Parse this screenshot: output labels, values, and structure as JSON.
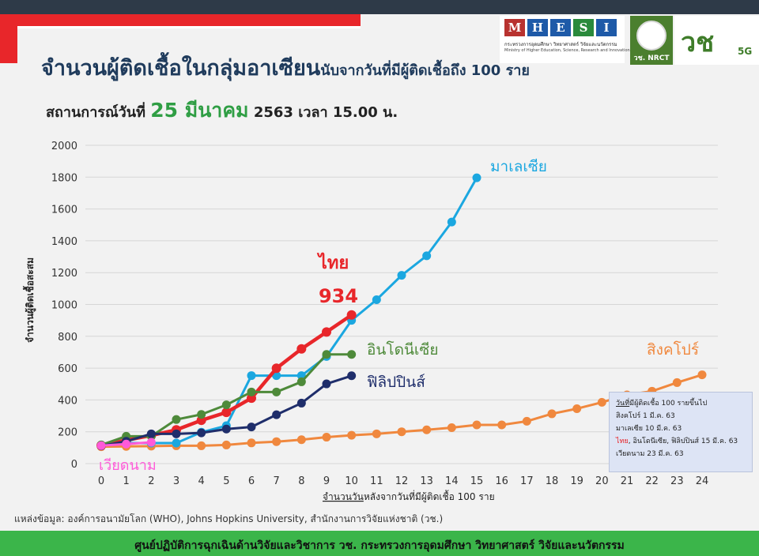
{
  "header": {
    "title_main": "จำนวนผู้ติดเชื้อในกลุ่มอาเซียน",
    "title_suffix": "นับจากวันที่มีผู้ติดเชื้อถึง 100 ราย",
    "status_prefix": "สถานการณ์วันที่",
    "status_date": "25 มีนาคม",
    "status_suffix": "2563 เวลา 15.00 น."
  },
  "logos": {
    "mhesi_letters": [
      "M",
      "H",
      "E",
      "S",
      "I"
    ],
    "mhesi_colors": [
      "#b8322f",
      "#1e5aa8",
      "#1e5aa8",
      "#2a8a3c",
      "#1e5aa8"
    ],
    "mhesi_thai": "กระทรวงการอุดมศึกษา วิทยาศาสตร์ วิจัยและนวัตกรรม",
    "mhesi_english": "Ministry of Higher Education, Science, Research and Innovation",
    "nrct_label": "วช. NRCT",
    "wc_label": "วช",
    "wc_5g": "5G"
  },
  "legend_box": {
    "heading": "วันที่มีผู้ติดเชื้อ 100 รายขึ้นไป",
    "heading_underlined": "วันที่",
    "heading_rest": "มีผู้ติดเชื้อ 100 รายขึ้นไป",
    "line1": "สิงคโปร์    1 มี.ค. 63",
    "line2": "มาเลเซีย  10 มี.ค. 63",
    "line3_red": "ไทย",
    "line3_rest": ", อินโดนีเซีย, ฟิลิปปินส์  15 มี.ค. 63",
    "line4": "เวียดนาม 23 มี.ค. 63"
  },
  "source": "แหล่งข้อมูล: องค์การอนามัยโลก (WHO), Johns Hopkins University, สำนักงานการวิจัยแห่งชาติ (วช.)",
  "footer": "ศูนย์ปฏิบัติการฉุกเฉินด้านวิจัยและวิชาการ   วช.   กระทรวงการอุดมศึกษา วิทยาศาสตร์ วิจัยและนวัตกรรม",
  "chart_data": {
    "type": "line",
    "ylabel": "จำนวนผู้ติดเชื้อสะสม",
    "xlabel_underlined": "จำนวนวัน",
    "xlabel_rest": "หลังจากวันที่มีผู้ติดเชื้อ 100 ราย",
    "ylim": [
      0,
      2000
    ],
    "yticks": [
      0,
      200,
      400,
      600,
      800,
      1000,
      1200,
      1400,
      1600,
      1800,
      2000
    ],
    "xlim": [
      0,
      24
    ],
    "xticks": [
      0,
      1,
      2,
      3,
      4,
      5,
      6,
      7,
      8,
      9,
      10,
      11,
      12,
      13,
      14,
      15,
      16,
      17,
      18,
      19,
      20,
      21,
      22,
      23,
      24
    ],
    "grid": true,
    "series": [
      {
        "name": "สิงคโปร์",
        "color": "#f0883e",
        "x": [
          0,
          1,
          2,
          3,
          4,
          5,
          6,
          7,
          8,
          9,
          10,
          11,
          12,
          13,
          14,
          15,
          16,
          17,
          18,
          19,
          20,
          21,
          22,
          23,
          24
        ],
        "y": [
          106,
          108,
          110,
          112,
          112,
          117,
          130,
          138,
          150,
          166,
          178,
          187,
          200,
          212,
          226,
          243,
          243,
          266,
          313,
          345,
          385,
          432,
          455,
          509,
          558
        ]
      },
      {
        "name": "มาเลเซีย",
        "color": "#1ba7e0",
        "x": [
          0,
          1,
          2,
          3,
          4,
          5,
          6,
          7,
          8,
          9,
          10,
          11,
          12,
          13,
          14,
          15
        ],
        "y": [
          117,
          129,
          129,
          129,
          197,
          238,
          553,
          553,
          553,
          673,
          900,
          1030,
          1183,
          1306,
          1518,
          1796
        ]
      },
      {
        "name": "ไทย",
        "color": "#e8262a",
        "x": [
          0,
          1,
          2,
          3,
          4,
          5,
          6,
          7,
          8,
          9,
          10
        ],
        "y": [
          114,
          147,
          177,
          212,
          272,
          322,
          411,
          599,
          721,
          827,
          934
        ]
      },
      {
        "name": "อินโดนีเซีย",
        "color": "#4e8a3a",
        "x": [
          0,
          1,
          2,
          3,
          4,
          5,
          6,
          7,
          8,
          9,
          10
        ],
        "y": [
          117,
          172,
          172,
          277,
          309,
          369,
          450,
          450,
          514,
          686,
          686
        ]
      },
      {
        "name": "ฟิลิปปินส์",
        "color": "#1f2e6b",
        "x": [
          0,
          1,
          2,
          3,
          4,
          5,
          6,
          7,
          8,
          9,
          10
        ],
        "y": [
          111,
          140,
          187,
          187,
          193,
          217,
          230,
          307,
          380,
          501,
          552
        ]
      },
      {
        "name": "เวียดนาม",
        "color": "#ff5ad9",
        "x": [
          0,
          1,
          2
        ],
        "y": [
          113,
          123,
          134
        ]
      }
    ],
    "annotations": {
      "thailand_label": "ไทย",
      "thailand_value": "934",
      "malaysia_label": "มาเลเซีย",
      "indonesia_label": "อินโดนีเซีย",
      "philippines_label": "ฟิลิปปินส์",
      "singapore_label": "สิงคโปร์",
      "vietnam_label": "เวียดนาม"
    }
  }
}
